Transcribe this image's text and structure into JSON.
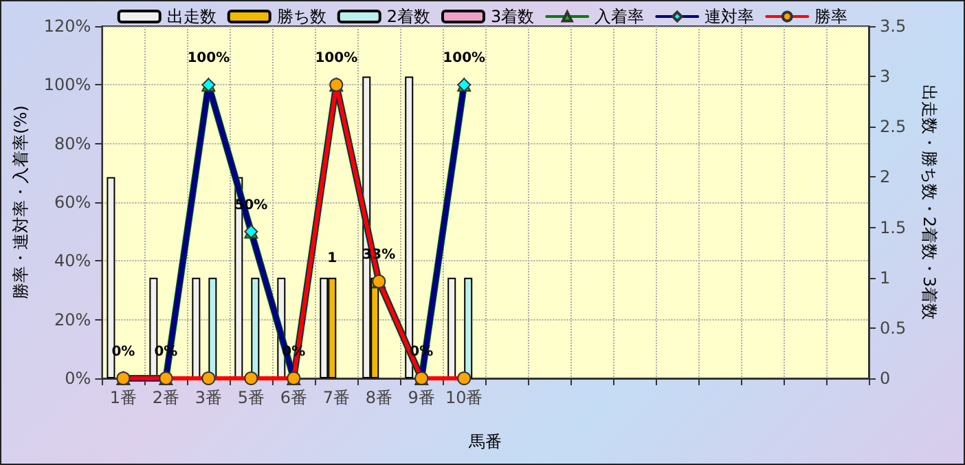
{
  "chart_data": {
    "type": "bar",
    "xlabel": "馬番",
    "ylabel": "勝率・連対率・入着率(%)",
    "y2label": "出走数・勝ち数・2着数・3着数",
    "categories": [
      "1番",
      "2番",
      "3番",
      "5番",
      "6番",
      "7番",
      "8番",
      "9番",
      "10番",
      null,
      null,
      null,
      null,
      null,
      null,
      null,
      null,
      null
    ],
    "series": [
      {
        "name": "出走数",
        "axis": "y2",
        "color": "#f0f0f0",
        "values": [
          2,
          1,
          1,
          2,
          1,
          1,
          3,
          3,
          1,
          null,
          null,
          null,
          null,
          null,
          null,
          null,
          null,
          null
        ]
      },
      {
        "name": "勝ち数",
        "axis": "y2",
        "color": "#f0b800",
        "values": [
          null,
          null,
          null,
          null,
          null,
          1,
          1,
          null,
          null,
          null,
          null,
          null,
          null,
          null,
          null,
          null,
          null,
          null
        ],
        "value_labels": [
          null,
          null,
          null,
          null,
          null,
          "1",
          null,
          null,
          null,
          null,
          null,
          null,
          null,
          null,
          null,
          null,
          null,
          null
        ]
      },
      {
        "name": "2着数",
        "axis": "y2",
        "color": "#b8f0f0",
        "values": [
          null,
          null,
          1,
          1,
          null,
          null,
          null,
          null,
          1,
          null,
          null,
          null,
          null,
          null,
          null,
          null,
          null,
          null
        ]
      },
      {
        "name": "3着数",
        "axis": "y2",
        "color": "#f0a0c8",
        "values": [
          null,
          null,
          null,
          null,
          null,
          null,
          null,
          null,
          null,
          null,
          null,
          null,
          null,
          null,
          null,
          null,
          null,
          null
        ]
      },
      {
        "name": "入着率",
        "type": "line",
        "marker": "triangle",
        "color": "#008000",
        "values": [
          0,
          0,
          100,
          50,
          0,
          100,
          33,
          0,
          100,
          null,
          null,
          null,
          null,
          null,
          null,
          null,
          null,
          null
        ]
      },
      {
        "name": "連対率",
        "type": "line",
        "marker": "diamond",
        "color": "#000080",
        "values": [
          0,
          0,
          100,
          50,
          0,
          100,
          33,
          0,
          100,
          null,
          null,
          null,
          null,
          null,
          null,
          null,
          null,
          null
        ],
        "value_labels": [
          "0%",
          "0%",
          "100%",
          "50%",
          "0%",
          "100%",
          "33%",
          "0%",
          "100%",
          null,
          null,
          null,
          null,
          null,
          null,
          null,
          null,
          null
        ]
      },
      {
        "name": "勝率",
        "type": "line",
        "marker": "circle",
        "color": "#ff0000",
        "values": [
          0,
          0,
          0,
          0,
          0,
          100,
          33,
          0,
          0,
          null,
          null,
          null,
          null,
          null,
          null,
          null,
          null,
          null
        ]
      }
    ],
    "ylim": [
      0,
      120
    ],
    "yticks": [
      {
        "value": 0,
        "label": "0%"
      },
      {
        "value": 20,
        "label": "20%"
      },
      {
        "value": 40,
        "label": "40%"
      },
      {
        "value": 60,
        "label": "60%"
      },
      {
        "value": 80,
        "label": "80%"
      },
      {
        "value": 100,
        "label": "100%"
      },
      {
        "value": 120,
        "label": "120%"
      }
    ],
    "y2lim": [
      0,
      3.5
    ],
    "y2ticks": [
      0,
      0.5,
      1,
      1.5,
      2,
      2.5,
      3,
      3.5
    ],
    "grid": true,
    "legend": "top"
  }
}
